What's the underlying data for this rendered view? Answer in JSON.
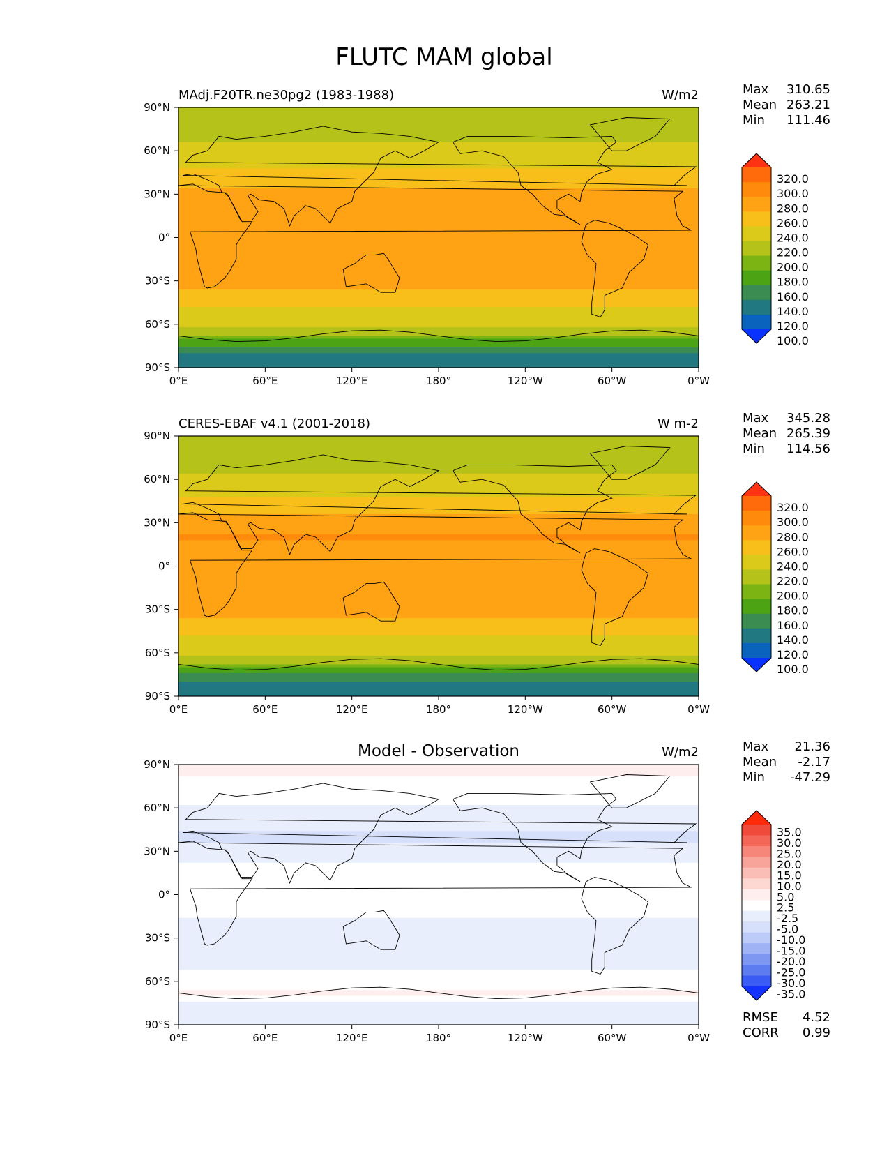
{
  "figure": {
    "title": "FLUTC MAM global"
  },
  "panels": [
    {
      "left_title": "MAdj.F20TR.ne30pg2 (1983-1988)",
      "center_title": "",
      "units": "W/m2",
      "stats": [
        {
          "label": "Max",
          "value": "310.65"
        },
        {
          "label": "Mean",
          "value": "263.21"
        },
        {
          "label": "Min",
          "value": "111.46"
        }
      ],
      "extra_stats": [],
      "colorbar": {
        "ticks": [
          "320.0",
          "300.0",
          "280.0",
          "260.0",
          "240.0",
          "220.0",
          "200.0",
          "180.0",
          "160.0",
          "140.0",
          "120.0",
          "100.0"
        ],
        "colors": [
          "#ff3214",
          "#ff6a0a",
          "#ff8a0c",
          "#ffa214",
          "#f8be1a",
          "#dcca1a",
          "#b4c21a",
          "#7cb414",
          "#4ca414",
          "#3a8c50",
          "#227880",
          "#0a64be",
          "#0a32ff"
        ]
      }
    },
    {
      "left_title": "CERES-EBAF v4.1 (2001-2018)",
      "center_title": "",
      "units": "W m-2",
      "stats": [
        {
          "label": "Max",
          "value": "345.28"
        },
        {
          "label": "Mean",
          "value": "265.39"
        },
        {
          "label": "Min",
          "value": "114.56"
        }
      ],
      "extra_stats": [],
      "colorbar": {
        "ticks": [
          "320.0",
          "300.0",
          "280.0",
          "260.0",
          "240.0",
          "220.0",
          "200.0",
          "180.0",
          "160.0",
          "140.0",
          "120.0",
          "100.0"
        ],
        "colors": [
          "#ff3214",
          "#ff6a0a",
          "#ff8a0c",
          "#ffa214",
          "#f8be1a",
          "#dcca1a",
          "#b4c21a",
          "#7cb414",
          "#4ca414",
          "#3a8c50",
          "#227880",
          "#0a64be",
          "#0a32ff"
        ]
      }
    },
    {
      "left_title": "",
      "center_title": "Model - Observation",
      "units": "W/m2",
      "stats": [
        {
          "label": "Max",
          "value": "21.36"
        },
        {
          "label": "Mean",
          "value": "-2.17"
        },
        {
          "label": "Min",
          "value": "-47.29"
        }
      ],
      "extra_stats": [
        {
          "label": "RMSE",
          "value": "4.52"
        },
        {
          "label": "CORR",
          "value": "0.99"
        }
      ],
      "colorbar": {
        "ticks": [
          "35.0",
          "30.0",
          "25.0",
          "20.0",
          "15.0",
          "10.0",
          "5.0",
          "2.5",
          "-2.5",
          "-5.0",
          "-10.0",
          "-15.0",
          "-20.0",
          "-25.0",
          "-30.0",
          "-35.0"
        ],
        "colors": [
          "#ff2a0a",
          "#f04a3a",
          "#f46658",
          "#f7867a",
          "#f9a49a",
          "#fbbeb6",
          "#fdd8d2",
          "#ffeeee",
          "#ffffff",
          "#e8eefc",
          "#d6e0fb",
          "#bccbf8",
          "#a0b4f5",
          "#7e98f2",
          "#5c7cf0",
          "#3a5cf4",
          "#1432ff"
        ]
      }
    }
  ],
  "axes": {
    "x_ticks": [
      "0°E",
      "60°E",
      "120°E",
      "180°",
      "120°W",
      "60°W",
      "0°W"
    ],
    "y_ticks": [
      "90°N",
      "60°N",
      "30°N",
      "0°",
      "30°S",
      "60°S",
      "90°S"
    ]
  },
  "chart_data": [
    {
      "type": "heatmap",
      "title": "MAdj.F20TR.ne30pg2 (1983-1988)",
      "units": "W/m2",
      "x_ticks": [
        "0°E",
        "60°E",
        "120°E",
        "180°",
        "120°W",
        "60°W",
        "0°W"
      ],
      "y_ticks": [
        "90°N",
        "60°N",
        "30°N",
        "0°",
        "30°S",
        "60°S",
        "90°S"
      ],
      "xlim": [
        0,
        360
      ],
      "ylim": [
        -90,
        90
      ],
      "max": 310.65,
      "mean": 263.21,
      "min": 111.46,
      "levels": [
        100,
        120,
        140,
        160,
        180,
        200,
        220,
        240,
        260,
        280,
        300,
        320
      ],
      "zonal_profile": {
        "lat": [
          90,
          80,
          70,
          60,
          50,
          40,
          30,
          20,
          10,
          0,
          -10,
          -20,
          -30,
          -40,
          -50,
          -60,
          -65,
          -70,
          -75,
          -80,
          -90
        ],
        "value": [
          205,
          210,
          215,
          225,
          236,
          250,
          268,
          278,
          272,
          270,
          275,
          276,
          268,
          252,
          236,
          225,
          215,
          180,
          160,
          140,
          135
        ]
      }
    },
    {
      "type": "heatmap",
      "title": "CERES-EBAF v4.1 (2001-2018)",
      "units": "W m-2",
      "x_ticks": [
        "0°E",
        "60°E",
        "120°E",
        "180°",
        "120°W",
        "60°W",
        "0°W"
      ],
      "y_ticks": [
        "90°N",
        "60°N",
        "30°N",
        "0°",
        "30°S",
        "60°S",
        "90°S"
      ],
      "xlim": [
        0,
        360
      ],
      "ylim": [
        -90,
        90
      ],
      "max": 345.28,
      "mean": 265.39,
      "min": 114.56,
      "levels": [
        100,
        120,
        140,
        160,
        180,
        200,
        220,
        240,
        260,
        280,
        300,
        320
      ],
      "zonal_profile": {
        "lat": [
          90,
          80,
          70,
          60,
          50,
          40,
          30,
          20,
          10,
          0,
          -10,
          -20,
          -30,
          -40,
          -50,
          -60,
          -65,
          -70,
          -75,
          -80,
          -90
        ],
        "value": [
          205,
          208,
          215,
          224,
          236,
          252,
          270,
          282,
          275,
          272,
          278,
          279,
          270,
          255,
          238,
          226,
          214,
          180,
          158,
          140,
          138
        ]
      }
    },
    {
      "type": "heatmap",
      "title": "Model - Observation",
      "units": "W/m2",
      "x_ticks": [
        "0°E",
        "60°E",
        "120°E",
        "180°",
        "120°W",
        "60°W",
        "0°W"
      ],
      "y_ticks": [
        "90°N",
        "60°N",
        "30°N",
        "0°",
        "30°S",
        "60°S",
        "90°S"
      ],
      "xlim": [
        0,
        360
      ],
      "ylim": [
        -90,
        90
      ],
      "max": 21.36,
      "mean": -2.17,
      "min": -47.29,
      "rmse": 4.52,
      "corr": 0.99,
      "levels": [
        -35,
        -30,
        -25,
        -20,
        -15,
        -10,
        -5,
        -2.5,
        2.5,
        5,
        10,
        15,
        20,
        25,
        30,
        35
      ],
      "zonal_profile": {
        "lat": [
          90,
          80,
          70,
          60,
          50,
          40,
          30,
          20,
          10,
          0,
          -10,
          -20,
          -30,
          -40,
          -50,
          -60,
          -65,
          -70,
          -75,
          -80,
          -90
        ],
        "value": [
          4,
          2,
          -1,
          -3,
          -4,
          -6,
          -4,
          -2,
          0,
          -1,
          -2,
          -3,
          -4,
          -4,
          -3,
          -1,
          2,
          4,
          -5,
          -4,
          -3
        ]
      }
    }
  ]
}
